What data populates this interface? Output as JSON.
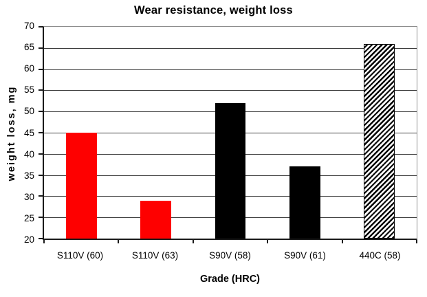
{
  "chart_data": {
    "type": "bar",
    "title": "Wear resistance, weight loss",
    "xlabel": "Grade (HRC)",
    "ylabel": "weight loss, mg",
    "categories": [
      "S110V (60)",
      "S110V (63)",
      "S90V (58)",
      "S90V (61)",
      "440C (58)"
    ],
    "values": [
      45,
      29,
      52,
      37,
      66
    ],
    "bar_fills": [
      "#fe0000",
      "#fe0000",
      "#000000",
      "#000000",
      "hatch-diagonal"
    ],
    "ylim": [
      20,
      70
    ],
    "ytick_step": 5,
    "grid": true,
    "legend": false,
    "layout": {
      "bar_width_pct": 8.26,
      "colors": {
        "red_bar": "#fe0000",
        "black_bar": "#000000",
        "hatch_stripe": "#000000",
        "gridline": "#3d3d3d",
        "plot_border": "#8c8c8c",
        "axis_line": "#1a1a1a",
        "background": "#ffffff"
      }
    }
  }
}
